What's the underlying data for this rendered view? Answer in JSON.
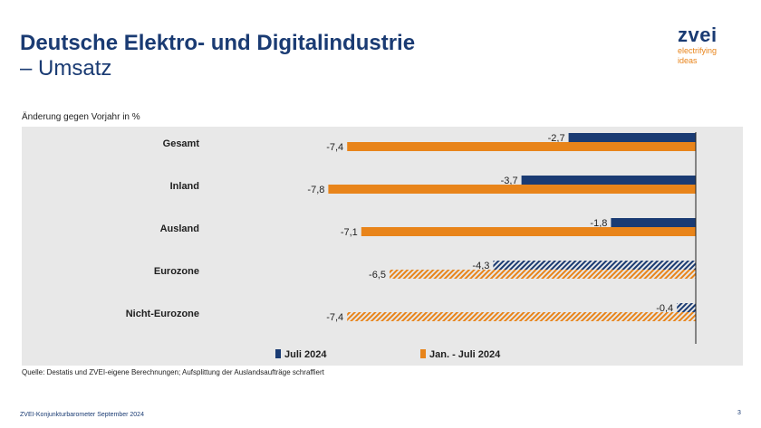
{
  "header": {
    "title_line1": "Deutsche Elektro- und Digitalindustrie",
    "title_line2": "– Umsatz"
  },
  "logo": {
    "word": "zvei",
    "tagline_1": "electrifying",
    "tagline_2": "ideas"
  },
  "subtitle": "Änderung gegen Vorjahr in %",
  "source": "Quelle: Destatis und ZVEI-eigene Berechnungen; Aufsplittung der Auslandsaufträge schraffiert",
  "footer": {
    "left": "ZVEI-Konjunkturbarometer September 2024",
    "page": "3"
  },
  "colors": {
    "navy": "#1a3b73",
    "orange": "#e8841a"
  },
  "chart_data": {
    "type": "bar",
    "orientation": "horizontal",
    "title": "Änderung gegen Vorjahr in %",
    "categories": [
      "Gesamt",
      "Inland",
      "Ausland",
      "Eurozone",
      "Nicht-Eurozone"
    ],
    "hatched": [
      false,
      false,
      false,
      true,
      true
    ],
    "series": [
      {
        "name": "Juli 2024",
        "color": "#1a3b73",
        "values": [
          -2.7,
          -3.7,
          -1.8,
          -4.3,
          -0.4
        ],
        "labels": [
          "-2,7",
          "-3,7",
          "-1,8",
          "-4,3",
          "-0,4"
        ]
      },
      {
        "name": "Jan. - Juli 2024",
        "color": "#e8841a",
        "values": [
          -7.4,
          -7.8,
          -7.1,
          -6.5,
          -7.4
        ],
        "labels": [
          "-7,4",
          "-7,8",
          "-7,1",
          "-6,5",
          "-7,4"
        ]
      }
    ],
    "xlim": [
      -8.2,
      0
    ],
    "legend": "bottom-center",
    "grid": false
  }
}
